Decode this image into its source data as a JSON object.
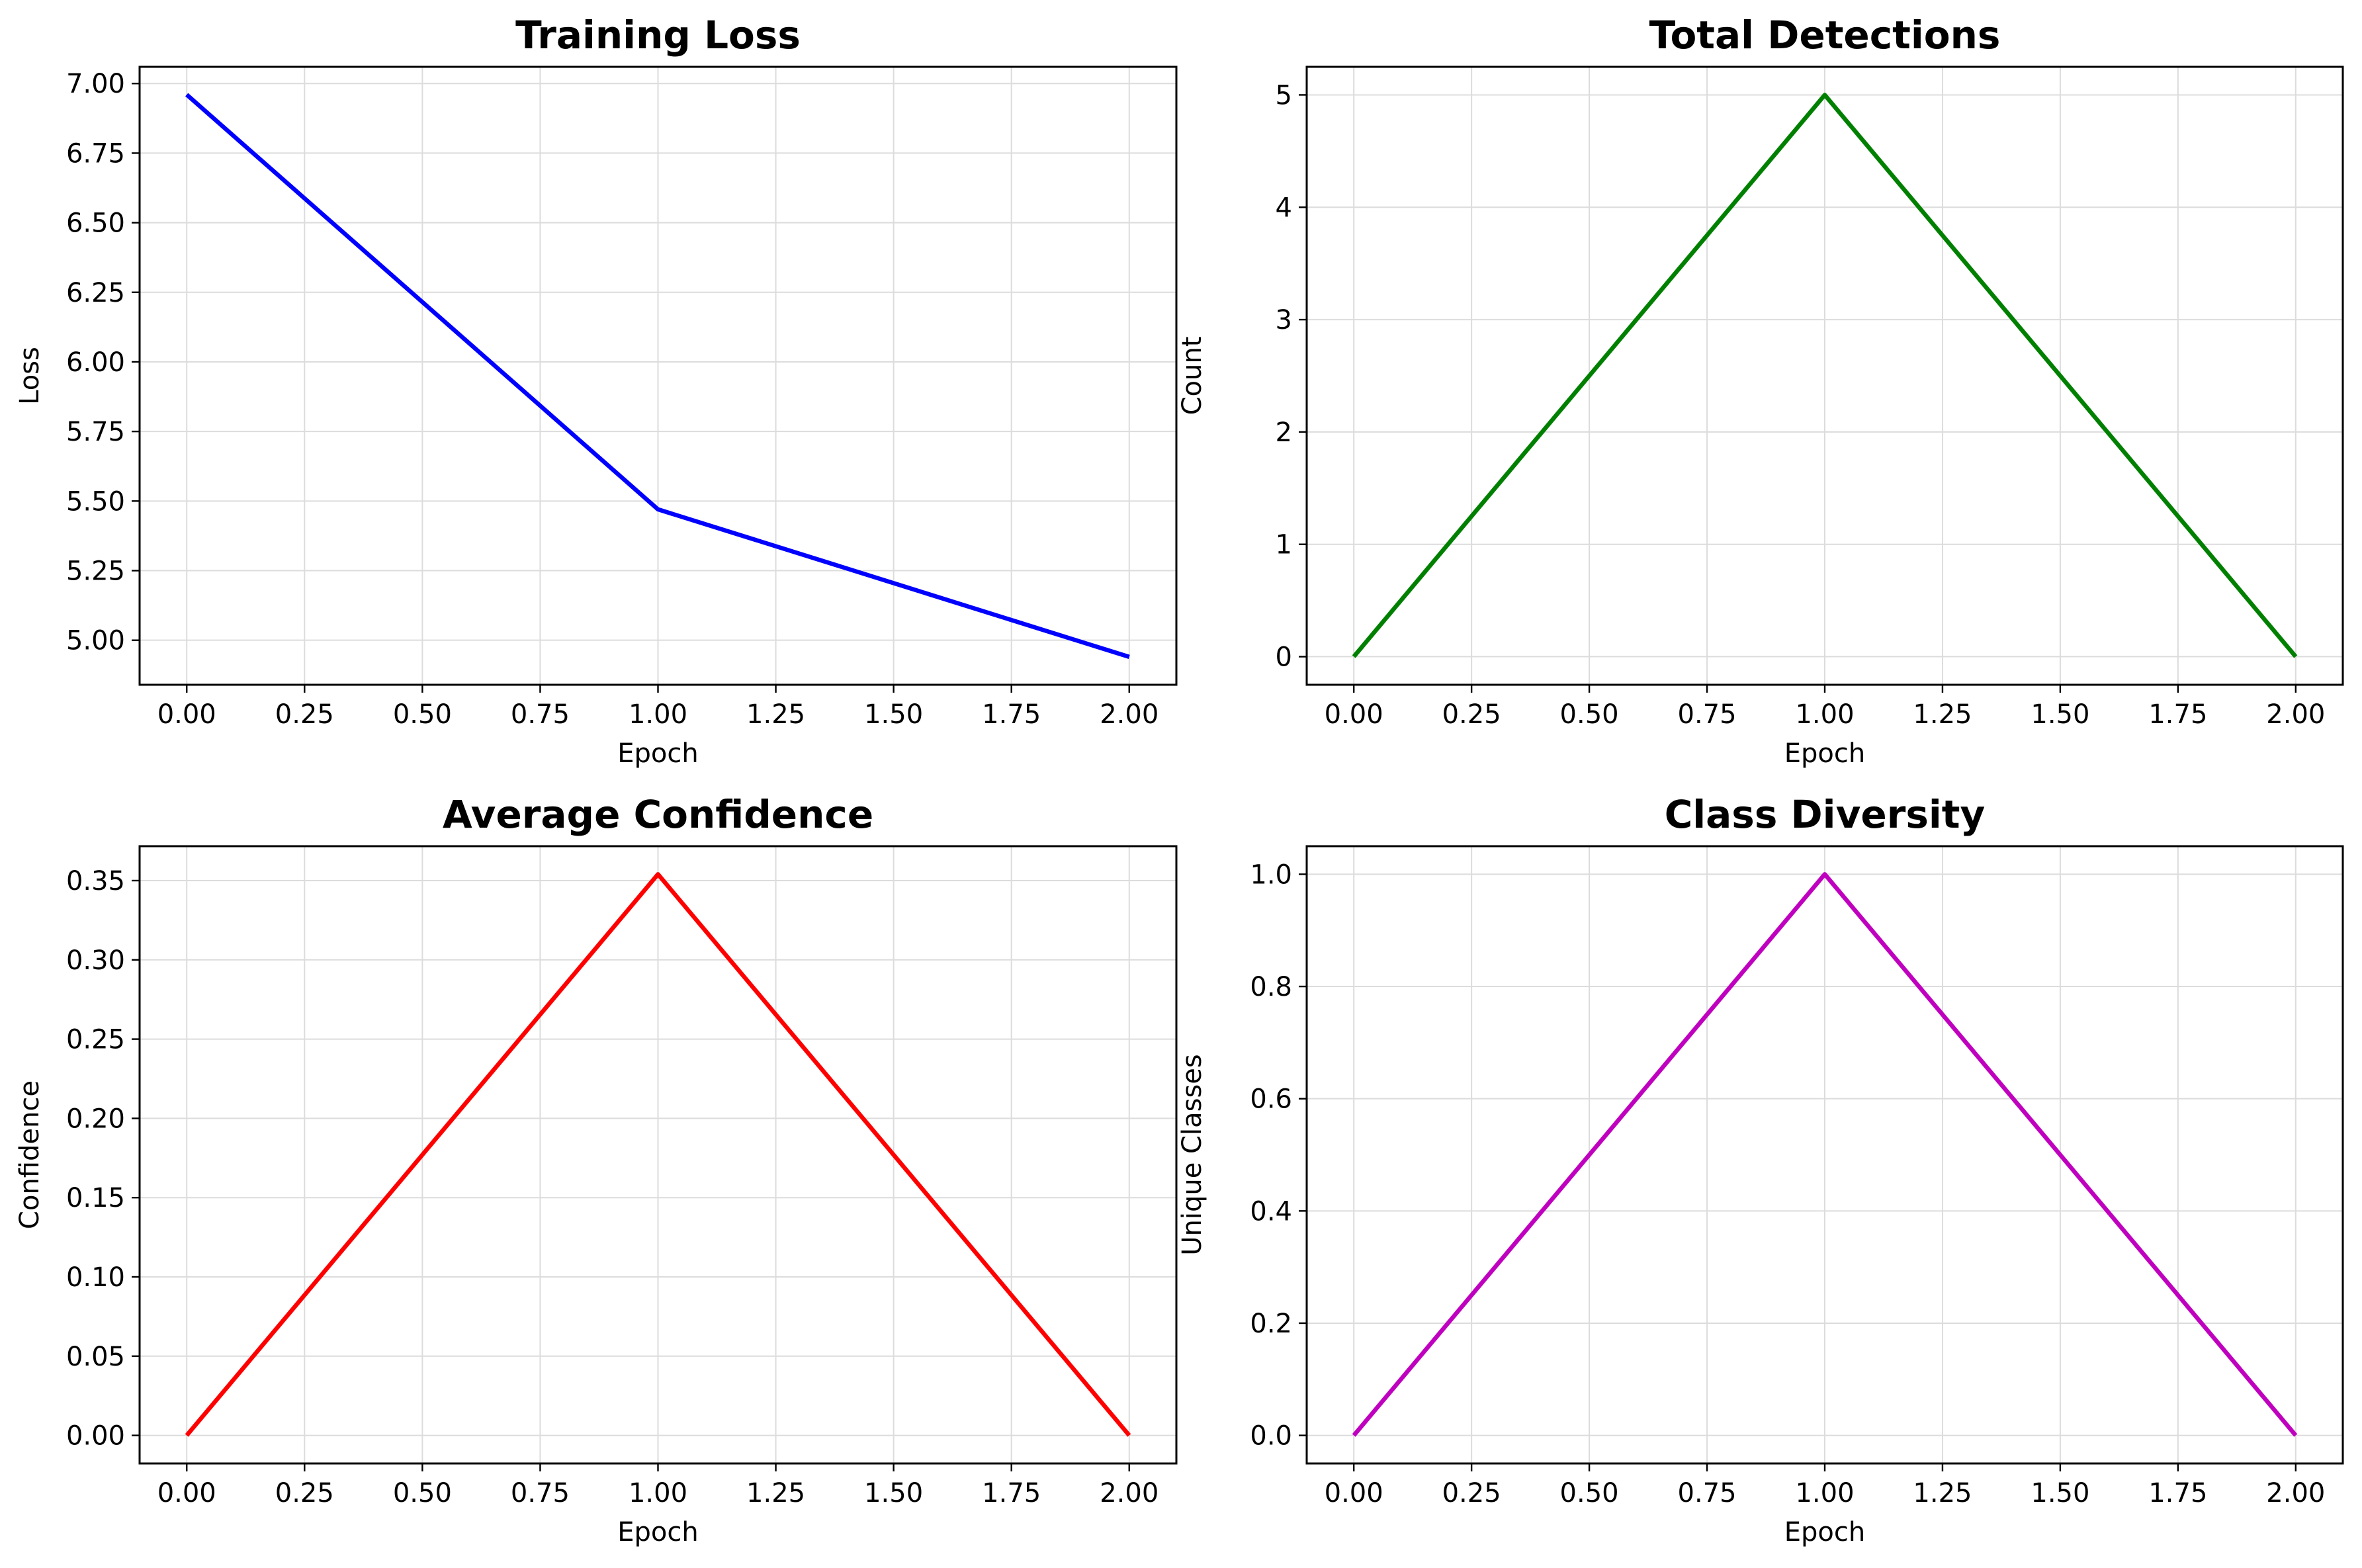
{
  "chart_data": [
    {
      "type": "line",
      "title": "Training Loss",
      "xlabel": "Epoch",
      "ylabel": "Loss",
      "x": [
        0,
        1,
        2
      ],
      "series": [
        {
          "values": [
            6.96,
            5.47,
            4.94
          ],
          "color": "#0000ff"
        }
      ],
      "xlim": [
        -0.1,
        2.1
      ],
      "ylim": [
        4.84,
        7.06
      ],
      "xticks": [
        "0.00",
        "0.25",
        "0.50",
        "0.75",
        "1.00",
        "1.25",
        "1.50",
        "1.75",
        "2.00"
      ],
      "yticks": [
        "5.00",
        "5.25",
        "5.50",
        "5.75",
        "6.00",
        "6.25",
        "6.50",
        "6.75",
        "7.00"
      ],
      "grid": true
    },
    {
      "type": "line",
      "title": "Total Detections",
      "xlabel": "Epoch",
      "ylabel": "Count",
      "x": [
        0,
        1,
        2
      ],
      "series": [
        {
          "values": [
            0,
            5,
            0
          ],
          "color": "#008000"
        }
      ],
      "xlim": [
        -0.1,
        2.1
      ],
      "ylim": [
        -0.25,
        5.25
      ],
      "xticks": [
        "0.00",
        "0.25",
        "0.50",
        "0.75",
        "1.00",
        "1.25",
        "1.50",
        "1.75",
        "2.00"
      ],
      "yticks": [
        "0",
        "1",
        "2",
        "3",
        "4",
        "5"
      ],
      "grid": true
    },
    {
      "type": "line",
      "title": "Average Confidence",
      "xlabel": "Epoch",
      "ylabel": "Confidence",
      "x": [
        0,
        1,
        2
      ],
      "series": [
        {
          "values": [
            0.0,
            0.354,
            0.0
          ],
          "color": "#ff0000"
        }
      ],
      "xlim": [
        -0.1,
        2.1
      ],
      "ylim": [
        -0.0177,
        0.3717
      ],
      "xticks": [
        "0.00",
        "0.25",
        "0.50",
        "0.75",
        "1.00",
        "1.25",
        "1.50",
        "1.75",
        "2.00"
      ],
      "yticks": [
        "0.00",
        "0.05",
        "0.10",
        "0.15",
        "0.20",
        "0.25",
        "0.30",
        "0.35"
      ],
      "grid": true
    },
    {
      "type": "line",
      "title": "Class Diversity",
      "xlabel": "Epoch",
      "ylabel": "Unique Classes",
      "x": [
        0,
        1,
        2
      ],
      "series": [
        {
          "values": [
            0,
            1,
            0
          ],
          "color": "#bf00bf"
        }
      ],
      "xlim": [
        -0.1,
        2.1
      ],
      "ylim": [
        -0.05,
        1.05
      ],
      "xticks": [
        "0.00",
        "0.25",
        "0.50",
        "0.75",
        "1.00",
        "1.25",
        "1.50",
        "1.75",
        "2.00"
      ],
      "yticks": [
        "0.0",
        "0.2",
        "0.4",
        "0.6",
        "0.8",
        "1.0"
      ],
      "grid": true
    }
  ]
}
